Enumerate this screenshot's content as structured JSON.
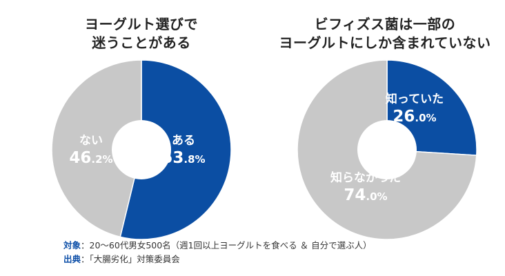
{
  "colors": {
    "accent": "#0b4ea3",
    "secondary": "#c8c8c8",
    "label_text": "#ffffff",
    "note_key": "#0d4fa8"
  },
  "chart_data": [
    {
      "type": "pie",
      "style": "donut",
      "title_lines": [
        "ヨーグルト選びで",
        "迷うことがある"
      ],
      "slices": [
        {
          "label": "ある",
          "value": 53.8,
          "display_int": "53",
          "display_dec": ".8%",
          "color": "#0b4ea3"
        },
        {
          "label": "ない",
          "value": 46.2,
          "display_int": "46",
          "display_dec": ".2%",
          "color": "#c8c8c8"
        }
      ]
    },
    {
      "type": "pie",
      "style": "donut",
      "title_lines": [
        "ビフィズス菌は一部の",
        "ヨーグルトにしか含まれていない"
      ],
      "slices": [
        {
          "label": "知っていた",
          "value": 26.0,
          "display_int": "26",
          "display_dec": ".0%",
          "color": "#0b4ea3"
        },
        {
          "label": "知らなかった",
          "value": 74.0,
          "display_int": "74",
          "display_dec": ".0%",
          "color": "#c8c8c8"
        }
      ]
    }
  ],
  "notes": {
    "target_key": "対象",
    "target_text": "：20～60代男女500名（週1回以上ヨーグルトを食べる ＆ 自分で選ぶ人）",
    "source_key": "出典",
    "source_text": "：「大腸劣化」対策委員会"
  }
}
